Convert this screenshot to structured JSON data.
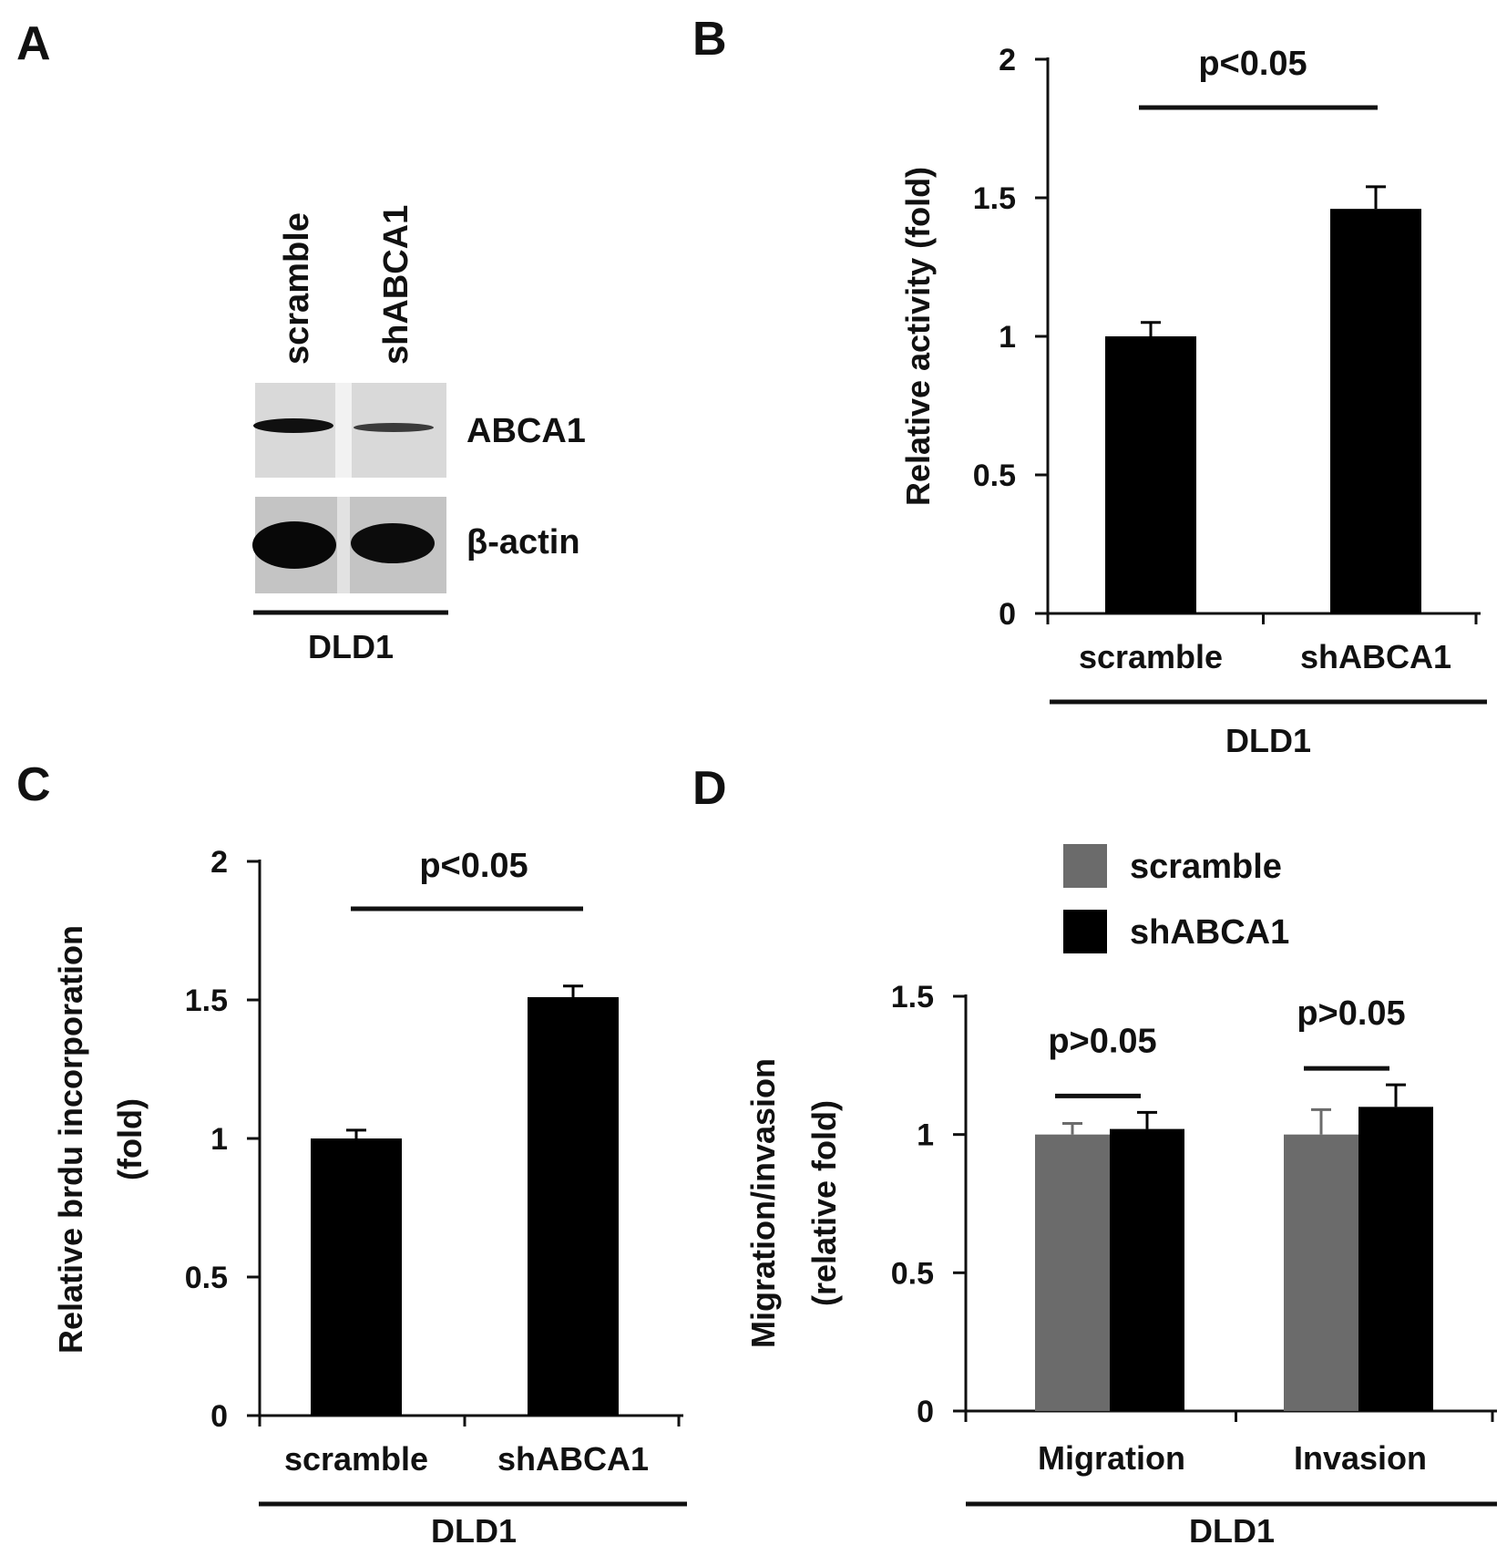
{
  "panel_labels": [
    "A",
    "B",
    "C",
    "D"
  ],
  "blot": {
    "lanes": [
      "scramble",
      "shABCA1"
    ],
    "bands": [
      "ABCA1",
      "β-actin"
    ],
    "cell_line": "DLD1"
  },
  "chart_data": [
    {
      "panel": "B",
      "type": "bar",
      "categories": [
        "scramble",
        "shABCA1"
      ],
      "values": [
        1.0,
        1.46
      ],
      "errors": [
        0.05,
        0.08
      ],
      "ylabel": "Relative activity (fold)",
      "group_label": "DLD1",
      "ylim": [
        0,
        2
      ],
      "yticks": [
        "0",
        "0.5",
        "1",
        "1.5",
        "2"
      ],
      "annotation": "p<0.05",
      "bar_color": "#000000"
    },
    {
      "panel": "C",
      "type": "bar",
      "categories": [
        "scramble",
        "shABCA1"
      ],
      "values": [
        1.0,
        1.51
      ],
      "errors": [
        0.03,
        0.04
      ],
      "ylabel_lines": [
        "Relative brdu incorporation",
        "(fold)"
      ],
      "group_label": "DLD1",
      "ylim": [
        0,
        2
      ],
      "yticks": [
        "0",
        "0.5",
        "1",
        "1.5",
        "2"
      ],
      "annotation": "p<0.05",
      "bar_color": "#000000"
    },
    {
      "panel": "D",
      "type": "bar",
      "categories": [
        "Migration",
        "Invasion"
      ],
      "series": [
        {
          "name": "scramble",
          "values": [
            1.0,
            1.0
          ],
          "errors": [
            0.04,
            0.09
          ],
          "color": "#6b6b6b"
        },
        {
          "name": "shABCA1",
          "values": [
            1.02,
            1.1
          ],
          "errors": [
            0.06,
            0.08
          ],
          "color": "#000000"
        }
      ],
      "ylabel_lines": [
        "Migration/invasion",
        "(relative fold)"
      ],
      "group_label": "DLD1",
      "ylim": [
        0,
        1.5
      ],
      "yticks": [
        "0",
        "0.5",
        "1",
        "1.5"
      ],
      "annotations": [
        "p>0.05",
        "p>0.05"
      ],
      "legend_position": "top"
    }
  ]
}
